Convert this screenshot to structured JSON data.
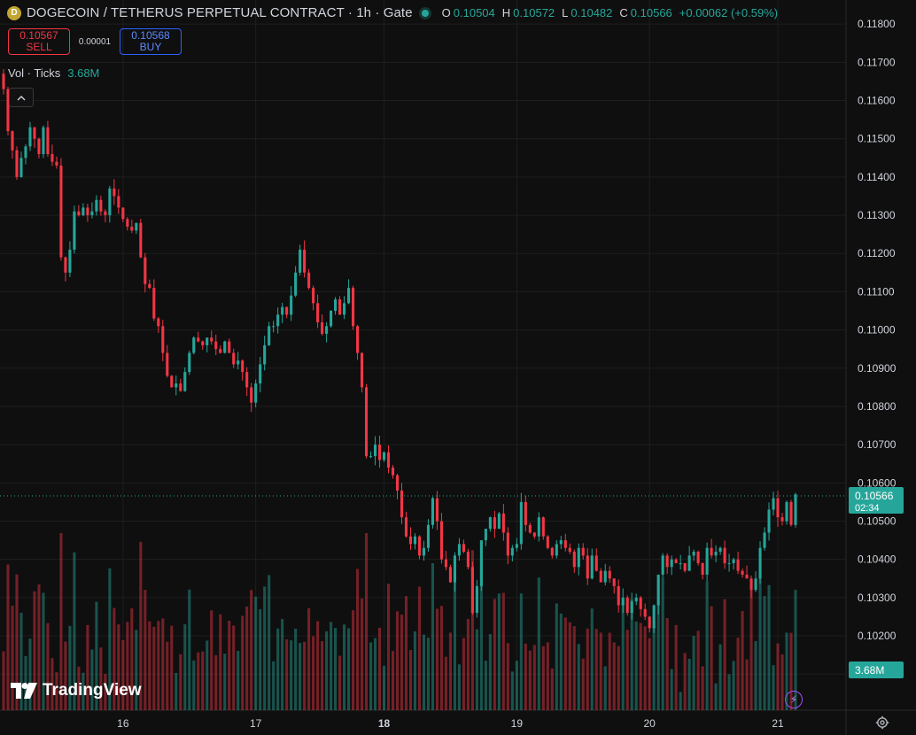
{
  "header": {
    "symbol": "DOGECOIN / TETHERUS PERPETUAL CONTRACT · 1h · Gate",
    "coin_icon": "D",
    "ohlc": {
      "o_label": "O",
      "o_value": "0.10504",
      "h_label": "H",
      "h_value": "0.10572",
      "l_label": "L",
      "l_value": "0.10482",
      "c_label": "C",
      "c_value": "0.10566",
      "change": "+0.00062 (+0.59%)"
    }
  },
  "trade": {
    "sell_price": "0.10567",
    "sell_label": "SELL",
    "spread": "0.00001",
    "buy_price": "0.10568",
    "buy_label": "BUY"
  },
  "volume_legend": {
    "label": "Vol · Ticks",
    "value": "3.68M"
  },
  "collapse_icon": "chevron-up-icon",
  "branding": {
    "name": "TradingView"
  },
  "colors": {
    "up": "#26a69a",
    "down": "#f23645",
    "background": "#0f0f0f",
    "grid": "#1e1e1e",
    "text": "#d1d4dc"
  },
  "chart_data": {
    "type": "candlestick",
    "interval": "1h",
    "y_axis": {
      "range": [
        0.10075,
        0.11812
      ],
      "ticks": [
        "0.11800",
        "0.11700",
        "0.11600",
        "0.11500",
        "0.11400",
        "0.11300",
        "0.11200",
        "0.11100",
        "0.11000",
        "0.10900",
        "0.10800",
        "0.10700",
        "0.10600",
        "0.10500",
        "0.10400",
        "0.10300",
        "0.10200",
        "0.10100"
      ]
    },
    "x_axis": {
      "ticks": [
        {
          "label": "16",
          "i": 27,
          "bold": false
        },
        {
          "label": "17",
          "i": 57,
          "bold": false
        },
        {
          "label": "18",
          "i": 86,
          "bold": true
        },
        {
          "label": "19",
          "i": 116,
          "bold": false
        },
        {
          "label": "20",
          "i": 146,
          "bold": false
        },
        {
          "label": "21",
          "i": 175,
          "bold": false
        }
      ]
    },
    "last_price": {
      "value": "0.10566",
      "countdown": "02:34",
      "numeric": 0.10566
    },
    "last_volume": "3.68M",
    "close": [
      0.1163,
      0.1152,
      0.1147,
      0.114,
      0.1145,
      0.1148,
      0.1153,
      0.115,
      0.1146,
      0.1153,
      0.1146,
      0.1144,
      0.1143,
      0.1119,
      0.1115,
      0.1121,
      0.1131,
      0.113,
      0.1132,
      0.113,
      0.1131,
      0.1134,
      0.1131,
      0.113,
      0.1137,
      0.1135,
      0.1132,
      0.1129,
      0.1127,
      0.1126,
      0.1128,
      0.1119,
      0.1112,
      0.1111,
      0.1103,
      0.1101,
      0.1094,
      0.1088,
      0.1085,
      0.1086,
      0.1084,
      0.1089,
      0.1094,
      0.1098,
      0.1097,
      0.1096,
      0.1098,
      0.1097,
      0.1095,
      0.1094,
      0.1097,
      0.1094,
      0.1091,
      0.1092,
      0.1089,
      0.1085,
      0.1081,
      0.1086,
      0.1091,
      0.1096,
      0.1101,
      0.1101,
      0.1104,
      0.1106,
      0.1104,
      0.1109,
      0.1115,
      0.1121,
      0.1115,
      0.1111,
      0.1107,
      0.1102,
      0.1099,
      0.1101,
      0.1105,
      0.1108,
      0.1104,
      0.1107,
      0.1111,
      0.1101,
      0.1094,
      0.1085,
      0.1067,
      0.1067,
      0.107,
      0.1066,
      0.1068,
      0.1064,
      0.1062,
      0.1058,
      0.1051,
      0.1046,
      0.1044,
      0.1046,
      0.1041,
      0.1043,
      0.1049,
      0.1056,
      0.105,
      0.104,
      0.1038,
      0.1034,
      0.1041,
      0.1044,
      0.1042,
      0.1038,
      0.1026,
      0.1033,
      0.1045,
      0.1048,
      0.1051,
      0.1048,
      0.1052,
      0.1047,
      0.1041,
      0.1043,
      0.1044,
      0.1055,
      0.1049,
      0.1047,
      0.1046,
      0.1051,
      0.1046,
      0.1043,
      0.1041,
      0.1044,
      0.1045,
      0.1043,
      0.1042,
      0.1038,
      0.1043,
      0.1041,
      0.1035,
      0.1041,
      0.1037,
      0.1034,
      0.1037,
      0.1035,
      0.1033,
      0.1028,
      0.103,
      0.1026,
      0.1029,
      0.103,
      0.1027,
      0.1025,
      0.1022,
      0.1028,
      0.1036,
      0.1041,
      0.1038,
      0.104,
      0.1039,
      0.1039,
      0.1037,
      0.1041,
      0.1042,
      0.1039,
      0.1036,
      0.1043,
      0.1041,
      0.1042,
      0.1043,
      0.1039,
      0.1039,
      0.104,
      0.1037,
      0.1036,
      0.1035,
      0.1032,
      0.1035,
      0.1043,
      0.1047,
      0.1053,
      0.1056,
      0.1051,
      0.105,
      0.1055,
      0.1049,
      0.1057
    ]
  }
}
